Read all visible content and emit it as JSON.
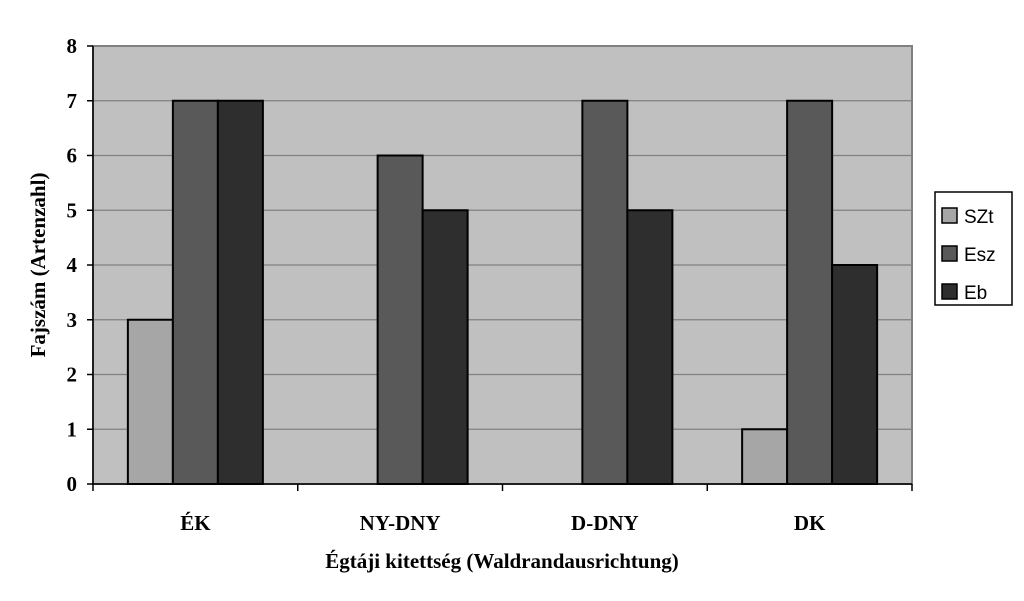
{
  "chart_data": {
    "type": "bar",
    "title": "",
    "xlabel": "Égtáji kitettség (Waldrandausrichtung)",
    "ylabel": "Fajszám  (Artenzahl)",
    "ylim": [
      0,
      8
    ],
    "yticks": [
      "0",
      "1",
      "2",
      "3",
      "4",
      "5",
      "6",
      "7",
      "8"
    ],
    "grid": true,
    "legend_position": "right",
    "categories": [
      "ÉK",
      "NY-DNY",
      "D-DNY",
      "DK"
    ],
    "series": [
      {
        "name": "SZt",
        "color": "#a6a6a6",
        "values": [
          3,
          0,
          0,
          1
        ]
      },
      {
        "name": "Esz",
        "color": "#595959",
        "values": [
          7,
          6,
          7,
          7
        ]
      },
      {
        "name": "Eb",
        "color": "#2e2e2e",
        "values": [
          7,
          5,
          5,
          4
        ]
      }
    ],
    "plot_background": "#c0c0c0"
  }
}
